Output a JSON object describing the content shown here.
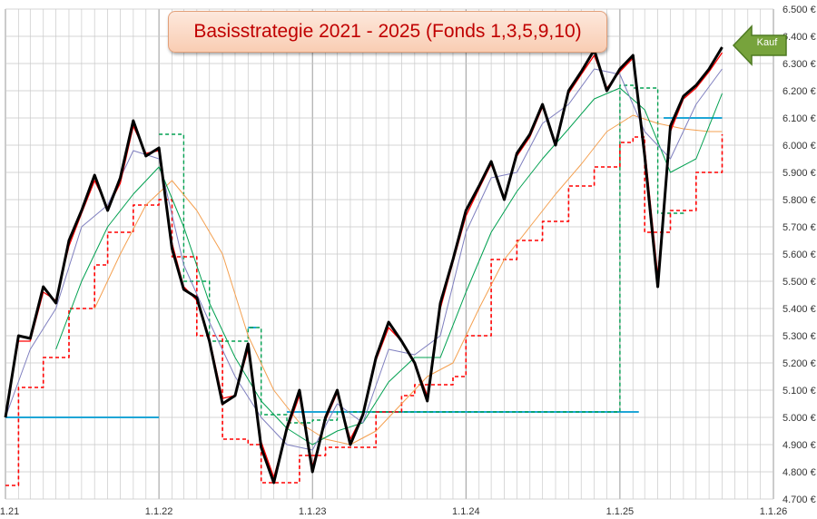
{
  "chart_data": {
    "type": "line",
    "title": "Basisstrategie 2021 - 2025 (Fonds 1,3,5,9,10)",
    "x_tick_labels": [
      "1.1.21",
      "1.1.22",
      "1.1.23",
      "1.1.24",
      "1.1.25",
      "1.1.26"
    ],
    "y_tick_labels": [
      "4.700 €",
      "4.800 €",
      "4.900 €",
      "5.000 €",
      "5.100 €",
      "5.200 €",
      "5.300 €",
      "5.400 €",
      "5.500 €",
      "5.600 €",
      "5.700 €",
      "5.800 €",
      "5.900 €",
      "6.000 €",
      "6.100 €",
      "6.200 €",
      "6.300 €",
      "6.400 €",
      "6.500 €"
    ],
    "xlim": [
      "2021-01-01",
      "2026-01-01"
    ],
    "ylim": [
      4700,
      6500
    ],
    "grid": true,
    "annotation": "Kauf",
    "series": [
      {
        "color": "#000000",
        "points": [
          [
            "2021-01-01",
            5000
          ],
          [
            "2021-02-01",
            5300
          ],
          [
            "2021-03-01",
            5290
          ],
          [
            "2021-04-01",
            5480
          ],
          [
            "2021-05-01",
            5420
          ],
          [
            "2021-06-01",
            5650
          ],
          [
            "2021-07-01",
            5760
          ],
          [
            "2021-08-01",
            5890
          ],
          [
            "2021-09-01",
            5760
          ],
          [
            "2021-10-01",
            5880
          ],
          [
            "2021-11-01",
            6090
          ],
          [
            "2021-12-01",
            5960
          ],
          [
            "2022-01-01",
            5990
          ],
          [
            "2022-02-01",
            5620
          ],
          [
            "2022-03-01",
            5470
          ],
          [
            "2022-04-01",
            5440
          ],
          [
            "2022-05-01",
            5280
          ],
          [
            "2022-06-01",
            5050
          ],
          [
            "2022-07-01",
            5080
          ],
          [
            "2022-08-01",
            5270
          ],
          [
            "2022-09-01",
            4890
          ],
          [
            "2022-10-01",
            4760
          ],
          [
            "2022-11-01",
            4960
          ],
          [
            "2022-12-01",
            5100
          ],
          [
            "2023-01-01",
            4800
          ],
          [
            "2023-02-01",
            5000
          ],
          [
            "2023-03-01",
            5100
          ],
          [
            "2023-04-01",
            4900
          ],
          [
            "2023-05-01",
            5010
          ],
          [
            "2023-06-01",
            5220
          ],
          [
            "2023-07-01",
            5350
          ],
          [
            "2023-08-01",
            5280
          ],
          [
            "2023-09-01",
            5200
          ],
          [
            "2023-10-01",
            5060
          ],
          [
            "2023-11-01",
            5420
          ],
          [
            "2023-12-01",
            5580
          ],
          [
            "2024-01-01",
            5760
          ],
          [
            "2024-02-01",
            5850
          ],
          [
            "2024-03-01",
            5940
          ],
          [
            "2024-04-01",
            5800
          ],
          [
            "2024-05-01",
            5970
          ],
          [
            "2024-06-01",
            6040
          ],
          [
            "2024-07-01",
            6150
          ],
          [
            "2024-08-01",
            6000
          ],
          [
            "2024-09-01",
            6200
          ],
          [
            "2024-10-01",
            6270
          ],
          [
            "2024-11-01",
            6350
          ],
          [
            "2024-12-01",
            6200
          ],
          [
            "2025-01-01",
            6280
          ],
          [
            "2025-02-01",
            6330
          ],
          [
            "2025-03-01",
            5960
          ],
          [
            "2025-04-01",
            5480
          ],
          [
            "2025-05-01",
            6070
          ],
          [
            "2025-06-01",
            6180
          ],
          [
            "2025-07-01",
            6220
          ],
          [
            "2025-08-01",
            6280
          ],
          [
            "2025-09-01",
            6360
          ]
        ]
      },
      {
        "color": "#ff0000",
        "points": [
          [
            "2021-01-01",
            5010
          ],
          [
            "2021-02-01",
            5280
          ],
          [
            "2021-03-01",
            5280
          ],
          [
            "2021-04-01",
            5460
          ],
          [
            "2021-05-01",
            5430
          ],
          [
            "2021-06-01",
            5630
          ],
          [
            "2021-07-01",
            5750
          ],
          [
            "2021-08-01",
            5870
          ],
          [
            "2021-09-01",
            5770
          ],
          [
            "2021-10-01",
            5860
          ],
          [
            "2021-11-01",
            6070
          ],
          [
            "2021-12-01",
            5970
          ],
          [
            "2022-01-01",
            5980
          ],
          [
            "2022-02-01",
            5640
          ],
          [
            "2022-03-01",
            5480
          ],
          [
            "2022-04-01",
            5430
          ],
          [
            "2022-05-01",
            5290
          ],
          [
            "2022-06-01",
            5070
          ],
          [
            "2022-07-01",
            5080
          ],
          [
            "2022-08-01",
            5250
          ],
          [
            "2022-09-01",
            4910
          ],
          [
            "2022-10-01",
            4780
          ],
          [
            "2022-11-01",
            4950
          ],
          [
            "2022-12-01",
            5080
          ],
          [
            "2023-01-01",
            4820
          ],
          [
            "2023-02-01",
            4990
          ],
          [
            "2023-03-01",
            5090
          ],
          [
            "2023-04-01",
            4920
          ],
          [
            "2023-05-01",
            5010
          ],
          [
            "2023-06-01",
            5210
          ],
          [
            "2023-07-01",
            5330
          ],
          [
            "2023-08-01",
            5280
          ],
          [
            "2023-09-01",
            5200
          ],
          [
            "2023-10-01",
            5080
          ],
          [
            "2023-11-01",
            5400
          ],
          [
            "2023-12-01",
            5570
          ],
          [
            "2024-01-01",
            5740
          ],
          [
            "2024-02-01",
            5840
          ],
          [
            "2024-03-01",
            5930
          ],
          [
            "2024-04-01",
            5810
          ],
          [
            "2024-05-01",
            5960
          ],
          [
            "2024-06-01",
            6030
          ],
          [
            "2024-07-01",
            6140
          ],
          [
            "2024-08-01",
            6010
          ],
          [
            "2024-09-01",
            6190
          ],
          [
            "2024-10-01",
            6260
          ],
          [
            "2024-11-01",
            6330
          ],
          [
            "2024-12-01",
            6210
          ],
          [
            "2025-01-01",
            6270
          ],
          [
            "2025-02-01",
            6320
          ],
          [
            "2025-03-01",
            5990
          ],
          [
            "2025-04-01",
            5520
          ],
          [
            "2025-05-01",
            6050
          ],
          [
            "2025-06-01",
            6170
          ],
          [
            "2025-07-01",
            6210
          ],
          [
            "2025-08-01",
            6270
          ],
          [
            "2025-09-01",
            6340
          ]
        ]
      },
      {
        "color": "#7f7fbf",
        "points": [
          [
            "2021-01-01",
            5000
          ],
          [
            "2021-03-01",
            5250
          ],
          [
            "2021-05-01",
            5400
          ],
          [
            "2021-07-01",
            5700
          ],
          [
            "2021-09-01",
            5780
          ],
          [
            "2021-11-01",
            5980
          ],
          [
            "2022-01-01",
            5950
          ],
          [
            "2022-03-01",
            5560
          ],
          [
            "2022-05-01",
            5350
          ],
          [
            "2022-07-01",
            5150
          ],
          [
            "2022-09-01",
            5000
          ],
          [
            "2022-11-01",
            4900
          ],
          [
            "2023-01-01",
            4880
          ],
          [
            "2023-03-01",
            5050
          ],
          [
            "2023-05-01",
            4980
          ],
          [
            "2023-07-01",
            5250
          ],
          [
            "2023-09-01",
            5230
          ],
          [
            "2023-11-01",
            5300
          ],
          [
            "2024-01-01",
            5680
          ],
          [
            "2024-03-01",
            5880
          ],
          [
            "2024-05-01",
            5900
          ],
          [
            "2024-07-01",
            6080
          ],
          [
            "2024-09-01",
            6150
          ],
          [
            "2024-11-01",
            6280
          ],
          [
            "2025-01-01",
            6260
          ],
          [
            "2025-03-01",
            6050
          ],
          [
            "2025-05-01",
            5950
          ],
          [
            "2025-07-01",
            6150
          ],
          [
            "2025-09-01",
            6280
          ]
        ]
      },
      {
        "color": "#00a050",
        "points": [
          [
            "2021-05-01",
            5250
          ],
          [
            "2021-07-01",
            5500
          ],
          [
            "2021-09-01",
            5700
          ],
          [
            "2021-11-01",
            5820
          ],
          [
            "2022-01-01",
            5920
          ],
          [
            "2022-03-01",
            5700
          ],
          [
            "2022-05-01",
            5420
          ],
          [
            "2022-07-01",
            5220
          ],
          [
            "2022-09-01",
            5060
          ],
          [
            "2022-11-01",
            4960
          ],
          [
            "2023-01-01",
            4900
          ],
          [
            "2023-03-01",
            4950
          ],
          [
            "2023-05-01",
            4980
          ],
          [
            "2023-07-01",
            5130
          ],
          [
            "2023-09-01",
            5220
          ],
          [
            "2023-11-01",
            5220
          ],
          [
            "2024-01-01",
            5460
          ],
          [
            "2024-03-01",
            5680
          ],
          [
            "2024-05-01",
            5830
          ],
          [
            "2024-07-01",
            5950
          ],
          [
            "2024-09-01",
            6060
          ],
          [
            "2024-11-01",
            6170
          ],
          [
            "2025-01-01",
            6210
          ],
          [
            "2025-03-01",
            6130
          ],
          [
            "2025-05-01",
            5900
          ],
          [
            "2025-07-01",
            5950
          ],
          [
            "2025-09-01",
            6190
          ]
        ]
      },
      {
        "color": "#f4a050",
        "points": [
          [
            "2021-08-01",
            5400
          ],
          [
            "2021-10-01",
            5600
          ],
          [
            "2021-12-01",
            5780
          ],
          [
            "2022-02-01",
            5870
          ],
          [
            "2022-04-01",
            5760
          ],
          [
            "2022-06-01",
            5600
          ],
          [
            "2022-08-01",
            5300
          ],
          [
            "2022-10-01",
            5100
          ],
          [
            "2022-12-01",
            4980
          ],
          [
            "2023-02-01",
            4920
          ],
          [
            "2023-04-01",
            4900
          ],
          [
            "2023-06-01",
            4950
          ],
          [
            "2023-08-01",
            5050
          ],
          [
            "2023-10-01",
            5150
          ],
          [
            "2023-12-01",
            5200
          ],
          [
            "2024-02-01",
            5400
          ],
          [
            "2024-04-01",
            5580
          ],
          [
            "2024-06-01",
            5700
          ],
          [
            "2024-08-01",
            5820
          ],
          [
            "2024-10-01",
            5930
          ],
          [
            "2024-12-01",
            6050
          ],
          [
            "2025-02-01",
            6110
          ],
          [
            "2025-04-01",
            6080
          ],
          [
            "2025-06-01",
            6060
          ],
          [
            "2025-08-01",
            6050
          ],
          [
            "2025-09-01",
            6050
          ]
        ]
      },
      {
        "color": "#ff0000",
        "dashed": true,
        "points": [
          [
            "2021-01-01",
            4750
          ],
          [
            "2021-02-01",
            5110
          ],
          [
            "2021-04-01",
            5220
          ],
          [
            "2021-06-01",
            5400
          ],
          [
            "2021-08-01",
            5560
          ],
          [
            "2021-09-01",
            5680
          ],
          [
            "2021-11-01",
            5780
          ],
          [
            "2022-01-01",
            5800
          ],
          [
            "2022-02-01",
            5590
          ],
          [
            "2022-04-01",
            5300
          ],
          [
            "2022-06-01",
            4920
          ],
          [
            "2022-08-01",
            4900
          ],
          [
            "2022-09-01",
            4760
          ],
          [
            "2022-12-01",
            4860
          ],
          [
            "2023-02-01",
            4890
          ],
          [
            "2023-05-01",
            4890
          ],
          [
            "2023-06-01",
            5020
          ],
          [
            "2023-08-01",
            5080
          ],
          [
            "2023-09-01",
            5120
          ],
          [
            "2023-12-01",
            5150
          ],
          [
            "2024-01-01",
            5300
          ],
          [
            "2024-03-01",
            5580
          ],
          [
            "2024-05-01",
            5650
          ],
          [
            "2024-07-01",
            5720
          ],
          [
            "2024-09-01",
            5850
          ],
          [
            "2024-11-01",
            5920
          ],
          [
            "2025-01-01",
            6010
          ],
          [
            "2025-02-01",
            6030
          ],
          [
            "2025-03-01",
            5680
          ],
          [
            "2025-05-01",
            5760
          ],
          [
            "2025-07-01",
            5900
          ],
          [
            "2025-09-01",
            6040
          ]
        ]
      },
      {
        "color": "#00a050",
        "dashed": true,
        "points": [
          [
            "2022-01-01",
            6040
          ],
          [
            "2022-03-01",
            5500
          ],
          [
            "2022-05-01",
            5280
          ],
          [
            "2022-07-01",
            5280
          ],
          [
            "2022-08-01",
            5330
          ],
          [
            "2022-09-01",
            5010
          ],
          [
            "2022-11-01",
            4980
          ],
          [
            "2023-01-01",
            4990
          ],
          [
            "2023-03-01",
            5020
          ],
          [
            "2023-05-01",
            5020
          ],
          [
            "2025-01-01",
            6220
          ],
          [
            "2025-02-01",
            6210
          ],
          [
            "2025-04-01",
            5750
          ],
          [
            "2025-06-01",
            5760
          ]
        ]
      }
    ],
    "horizontal_lines": [
      {
        "color": "#1fa6d6",
        "y": 5000,
        "x_start": "2021-01-01",
        "x_end": "2022-01-01"
      },
      {
        "color": "#1fa6d6",
        "y": 5020,
        "x_start": "2022-11-01",
        "x_end": "2025-02-15"
      },
      {
        "color": "#1fa6d6",
        "y": 6100,
        "x_start": "2025-04-15",
        "x_end": "2025-09-01"
      },
      {
        "color": "#1fa6d6",
        "y": 5330,
        "x_start": "2022-08-01",
        "x_end": "2022-08-20"
      }
    ]
  }
}
